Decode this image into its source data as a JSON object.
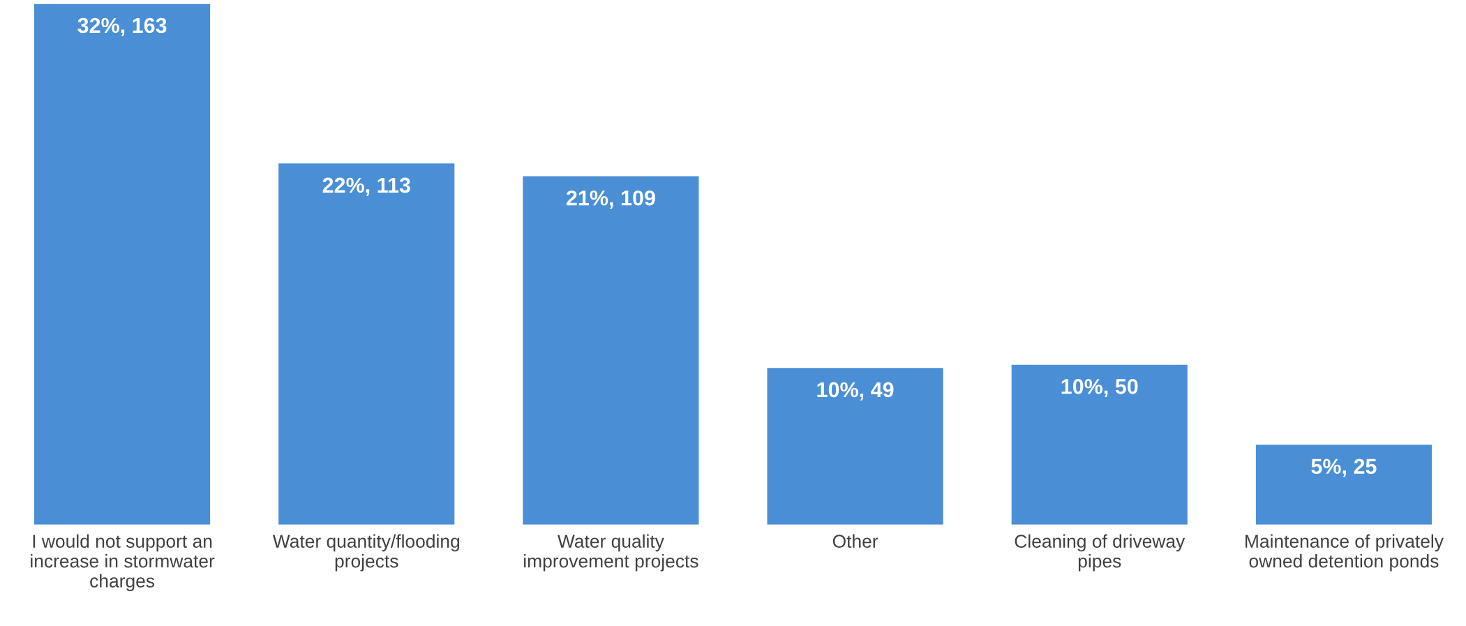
{
  "chart_data": {
    "type": "bar",
    "categories": [
      "I would not support an\nincrease in stormwater\ncharges",
      "Water quantity/flooding\nprojects",
      "Water quality\nimprovement projects",
      "Other",
      "Cleaning of driveway\npipes",
      "Maintenance of privately\nowned detention ponds"
    ],
    "values": [
      163,
      113,
      109,
      49,
      50,
      25
    ],
    "value_labels": [
      "32%, 163",
      "22%, 113",
      "21%, 109",
      "10%, 49",
      "10%, 50",
      "5%, 25"
    ],
    "color": "#4a8fd6"
  }
}
